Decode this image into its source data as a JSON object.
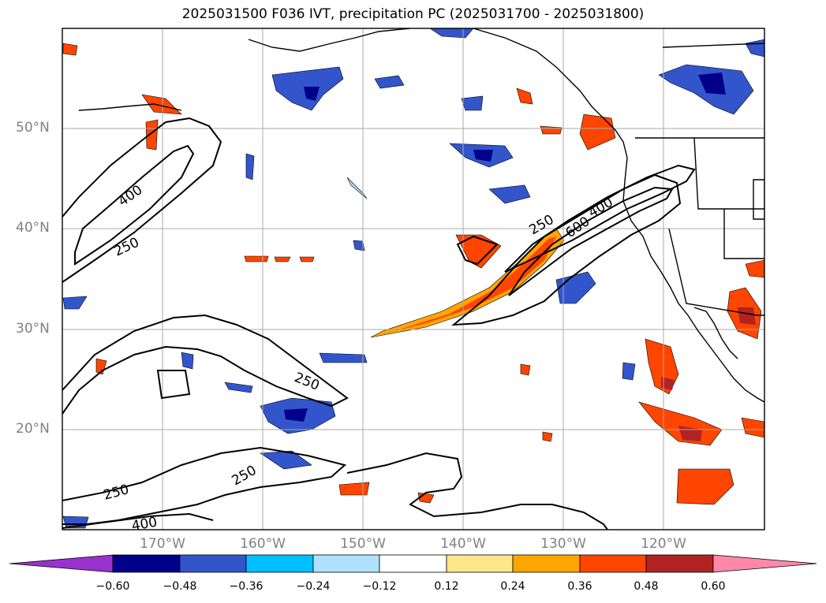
{
  "title": "2025031500 F036 IVT, precipitation PC (2025031700 - 2025031800)",
  "map": {
    "lat_labels": [
      "50°N",
      "40°N",
      "30°N",
      "20°N"
    ],
    "lon_labels": [
      "170°W",
      "160°W",
      "150°W",
      "140°W",
      "130°W",
      "120°W"
    ],
    "contour_labels": [
      "400",
      "250",
      "250",
      "250",
      "250",
      "400",
      "250",
      "600",
      "400"
    ],
    "contour_levels": [
      250,
      400,
      600
    ],
    "extent": {
      "lon": [
        -180,
        -110
      ],
      "lat": [
        10,
        60
      ]
    }
  },
  "colorbar": {
    "ticks": [
      "−0.60",
      "−0.48",
      "−0.36",
      "−0.24",
      "−0.12",
      "0.12",
      "0.24",
      "0.36",
      "0.48",
      "0.60"
    ],
    "colors": [
      "#9932cc",
      "#00008b",
      "#3355cc",
      "#00bfff",
      "#b0e0ff",
      "#ffffff",
      "#ffe68a",
      "#ffa500",
      "#ff4500",
      "#b22222",
      "#ff88aa"
    ],
    "extend": "both"
  }
}
